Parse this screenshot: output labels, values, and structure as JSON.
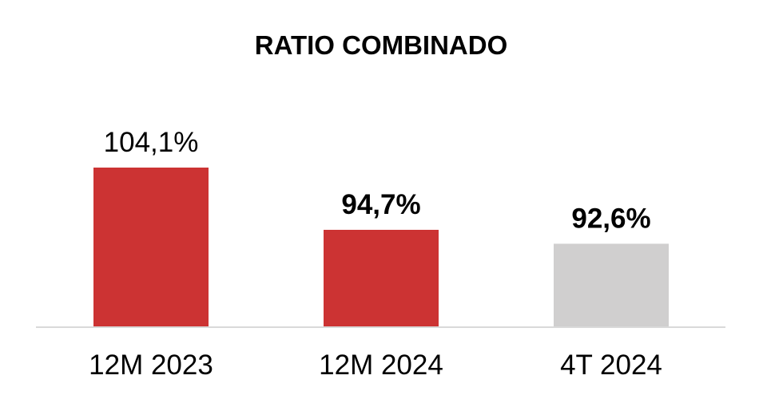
{
  "chart_data": {
    "type": "bar",
    "title": "RATIO COMBINADO",
    "categories": [
      "12M 2023",
      "12M 2024",
      "4T 2024"
    ],
    "values": [
      104.1,
      94.7,
      92.6
    ],
    "value_labels": [
      "104,1%",
      "94,7%",
      "92,6%"
    ],
    "value_label_bold": [
      false,
      true,
      true
    ],
    "colors": [
      "#cc3333",
      "#cc3333",
      "#d0cfcf"
    ],
    "xlabel": "",
    "ylabel": "",
    "ylim": [
      80,
      106
    ],
    "grid": false,
    "legend": "none"
  },
  "colors": {
    "accent": "#cc3333",
    "muted": "#d0cfcf",
    "axis": "#d9d9d9"
  }
}
